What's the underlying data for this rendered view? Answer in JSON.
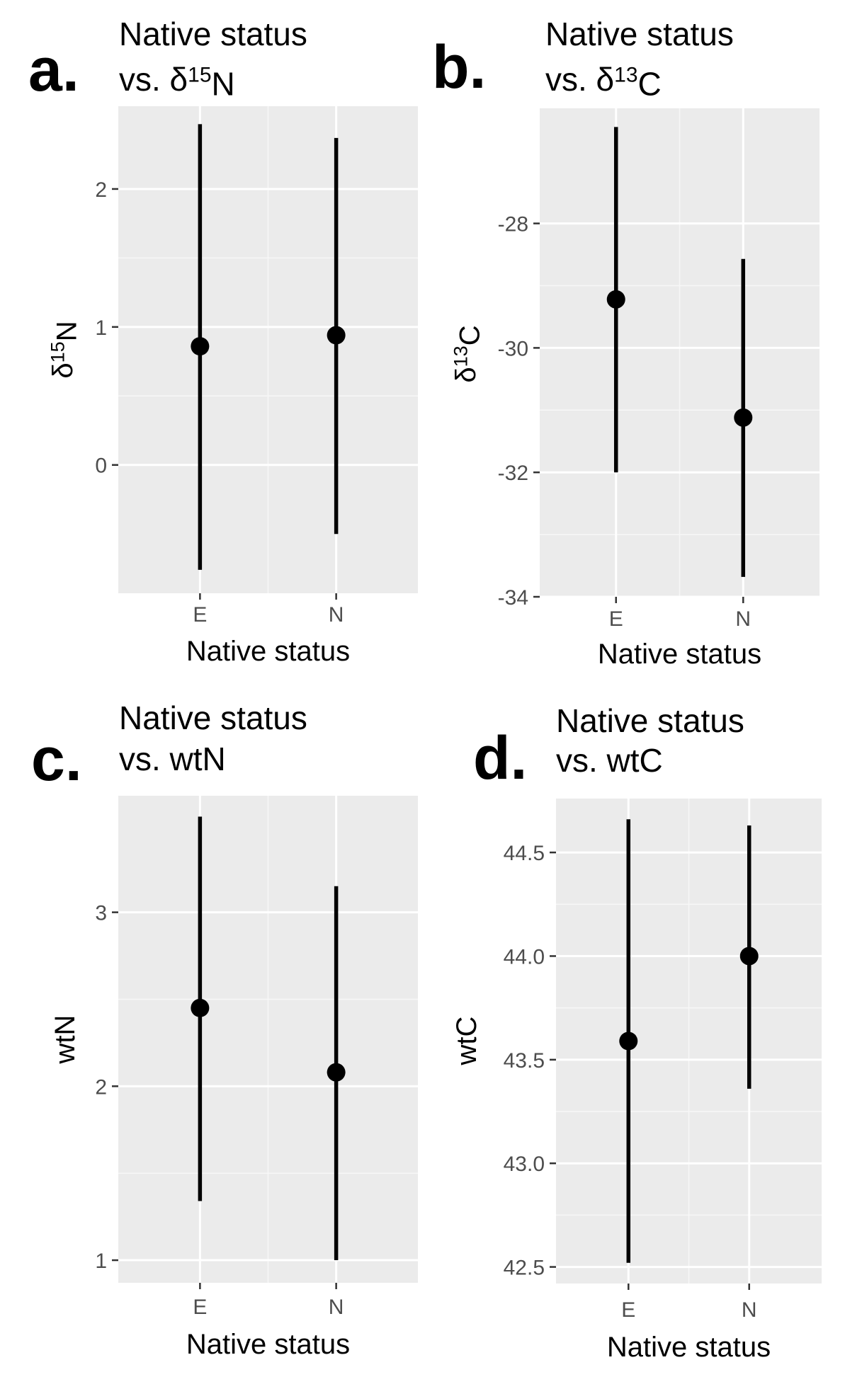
{
  "chart_data": [
    {
      "type": "errorbar",
      "panel_label": "a.",
      "title_line1": "Native status",
      "title_line2": {
        "prefix": "vs. δ",
        "sup": "15",
        "suffix": "N"
      },
      "xlabel": "Native status",
      "ylabel": {
        "prefix": "δ",
        "sup": "15",
        "suffix": "N"
      },
      "categories": [
        "E",
        "N"
      ],
      "yticks": [
        0,
        1,
        2
      ],
      "yticklabels": [
        "0",
        "1",
        "2"
      ],
      "ylim": [
        -0.93,
        2.6
      ],
      "grid": true,
      "points": [
        {
          "category": "E",
          "mean": 0.86,
          "lower": -0.76,
          "upper": 2.47
        },
        {
          "category": "N",
          "mean": 0.94,
          "lower": -0.5,
          "upper": 2.37
        }
      ]
    },
    {
      "type": "errorbar",
      "panel_label": "b.",
      "title_line1": "Native status",
      "title_line2": {
        "prefix": "vs. δ",
        "sup": "13",
        "suffix": "C"
      },
      "xlabel": "Native status",
      "ylabel": {
        "prefix": "δ",
        "sup": "13",
        "suffix": "C"
      },
      "categories": [
        "E",
        "N"
      ],
      "yticks": [
        -34,
        -32,
        -30,
        -28
      ],
      "yticklabels": [
        "-34",
        "-32",
        "-30",
        "-28"
      ],
      "ylim": [
        -34.0,
        -26.15
      ],
      "grid": true,
      "points": [
        {
          "category": "E",
          "mean": -29.22,
          "lower": -32.0,
          "upper": -26.45
        },
        {
          "category": "N",
          "mean": -31.12,
          "lower": -33.68,
          "upper": -28.57
        }
      ]
    },
    {
      "type": "errorbar",
      "panel_label": "c.",
      "title_line1": "Native status",
      "title_line2": {
        "prefix": "vs. wtN",
        "sup": "",
        "suffix": ""
      },
      "xlabel": "Native status",
      "ylabel": {
        "prefix": "wtN",
        "sup": "",
        "suffix": ""
      },
      "categories": [
        "E",
        "N"
      ],
      "yticks": [
        1,
        2,
        3
      ],
      "yticklabels": [
        "1",
        "2",
        "3"
      ],
      "ylim": [
        0.87,
        3.67
      ],
      "grid": true,
      "points": [
        {
          "category": "E",
          "mean": 2.45,
          "lower": 1.34,
          "upper": 3.55
        },
        {
          "category": "N",
          "mean": 2.08,
          "lower": 1.0,
          "upper": 3.15
        }
      ]
    },
    {
      "type": "errorbar",
      "panel_label": "d.",
      "title_line1": "Native status",
      "title_line2": {
        "prefix": "vs. wtC",
        "sup": "",
        "suffix": ""
      },
      "xlabel": "Native status",
      "ylabel": {
        "prefix": "wtC",
        "sup": "",
        "suffix": ""
      },
      "categories": [
        "E",
        "N"
      ],
      "yticks": [
        42.5,
        43.0,
        43.5,
        44.0,
        44.5
      ],
      "yticklabels": [
        "42.5",
        "43.0",
        "43.5",
        "44.0",
        "44.5"
      ],
      "ylim": [
        42.42,
        44.76
      ],
      "grid": true,
      "points": [
        {
          "category": "E",
          "mean": 43.59,
          "lower": 42.52,
          "upper": 44.66
        },
        {
          "category": "N",
          "mean": 44.0,
          "lower": 43.36,
          "upper": 44.63
        }
      ]
    }
  ]
}
